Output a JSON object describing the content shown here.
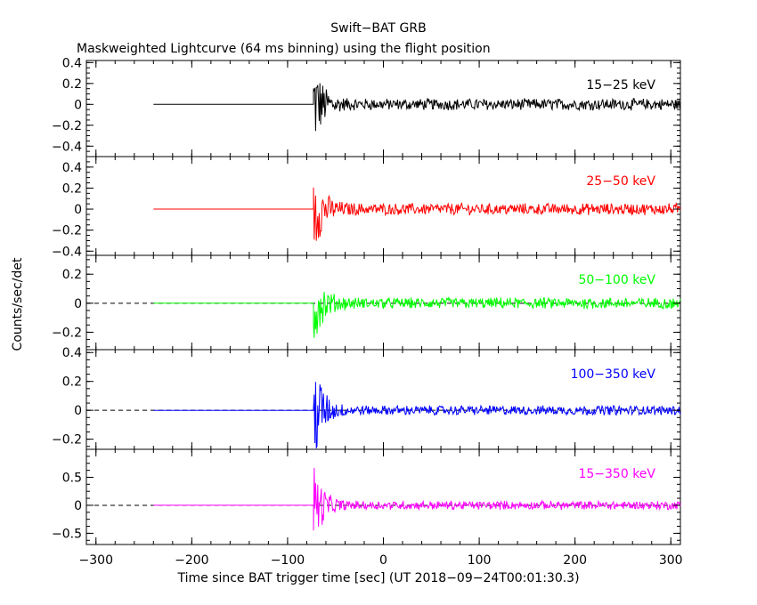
{
  "chart_data": {
    "type": "line",
    "title": "Swift−BAT GRB",
    "subtitle": "Maskweighted Lightcurve (64 ms binning) using the flight position",
    "xlabel": "Time since BAT trigger time [sec] (UT 2018−09−24T00:01:30.3)",
    "ylabel": "Counts/sec/det",
    "xlim": [
      -310,
      310
    ],
    "x_ticks": [
      -300,
      -200,
      -100,
      0,
      100,
      200,
      300
    ],
    "x_tick_labels": [
      "−300",
      "−200",
      "−100",
      "0",
      "100",
      "200",
      "300"
    ],
    "data_start": -240,
    "burst_onset": -73,
    "grid": false,
    "panels": [
      {
        "name": "15−25 keV",
        "color": "#000000",
        "ylim": [
          -0.5,
          0.42
        ],
        "y_ticks": [
          -0.4,
          -0.2,
          0,
          0.2,
          0.4
        ],
        "y_tick_labels": [
          "−0.4",
          "−0.2",
          "0",
          "0.2",
          "0.4"
        ],
        "peak_amplitude": 0.45,
        "noise_amplitude": 0.05,
        "zero_dashed": false
      },
      {
        "name": "25−50 keV",
        "color": "#ff0000",
        "ylim": [
          -0.44,
          0.5
        ],
        "y_ticks": [
          -0.4,
          -0.2,
          0,
          0.2,
          0.4
        ],
        "y_tick_labels": [
          "−0.4",
          "−0.2",
          "0",
          "0.2",
          "0.4"
        ],
        "peak_amplitude": 0.45,
        "noise_amplitude": 0.05,
        "zero_dashed": false
      },
      {
        "name": "50−100 keV",
        "color": "#00ff00",
        "ylim": [
          -0.32,
          0.33
        ],
        "y_ticks": [
          -0.2,
          0,
          0.2
        ],
        "y_tick_labels": [
          "−0.2",
          "0",
          "0.2"
        ],
        "peak_amplitude": 0.3,
        "noise_amplitude": 0.035,
        "zero_dashed": true
      },
      {
        "name": "100−350 keV",
        "color": "#0000ff",
        "ylim": [
          -0.27,
          0.42
        ],
        "y_ticks": [
          -0.2,
          0,
          0.2,
          0.4
        ],
        "y_tick_labels": [
          "−0.2",
          "0",
          "0.2",
          "0.4"
        ],
        "peak_amplitude": 0.4,
        "noise_amplitude": 0.03,
        "zero_dashed": true
      },
      {
        "name": "15−350 keV",
        "color": "#ff00ff",
        "ylim": [
          -0.7,
          1.0
        ],
        "y_ticks": [
          -0.5,
          0,
          0.5
        ],
        "y_tick_labels": [
          "−0.5",
          "0",
          "0.5"
        ],
        "peak_amplitude": 0.75,
        "noise_amplitude": 0.07,
        "zero_dashed": true
      }
    ]
  }
}
